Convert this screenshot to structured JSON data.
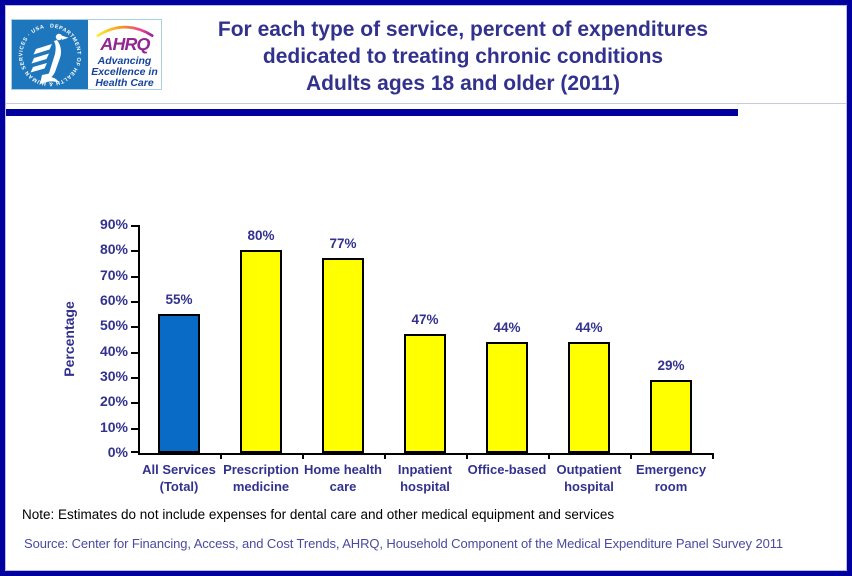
{
  "colors": {
    "frame_navy": "#0101A0",
    "title_navy": "#32328E",
    "bar_blue": "#0A6BC6",
    "bar_yellow": "#FFFF00",
    "bar_border": "#000000",
    "hhs_blue": "#1E76BC",
    "ahrq_purple": "#92278F",
    "tagline_blue": "#17449B",
    "source_blue": "#4A4AA0"
  },
  "header": {
    "logo": {
      "hhs_ring_text": "DEPARTMENT OF HEALTH & HUMAN SERVICES · USA",
      "ahrq_wordmark": "AHRQ",
      "tagline_lines": [
        "Advancing",
        "Excellence in",
        "Health Care"
      ]
    },
    "title_lines": [
      "For each type of service, percent of expenditures",
      "dedicated to treating chronic conditions",
      "Adults ages 18 and older (2011)"
    ]
  },
  "chart_data": {
    "type": "bar",
    "title": "For each type of service, percent of expenditures dedicated to treating chronic conditions, Adults ages 18 and older (2011)",
    "categories": [
      [
        "All Services",
        "(Total)"
      ],
      [
        "Prescription",
        "medicine"
      ],
      [
        "Home health",
        "care"
      ],
      [
        "Inpatient",
        "hospital"
      ],
      [
        "Office-based"
      ],
      [
        "Outpatient",
        "hospital"
      ],
      [
        "Emergency",
        "room"
      ]
    ],
    "values": [
      55,
      80,
      77,
      47,
      44,
      44,
      29
    ],
    "value_labels": [
      "55%",
      "80%",
      "77%",
      "47%",
      "44%",
      "44%",
      "29%"
    ],
    "bar_colors": [
      "#0A6BC6",
      "#FFFF00",
      "#FFFF00",
      "#FFFF00",
      "#FFFF00",
      "#FFFF00",
      "#FFFF00"
    ],
    "xlabel": "",
    "ylabel": "Percentage",
    "ylim": [
      0,
      90
    ],
    "ytick_step": 10,
    "ytick_labels": [
      "0%",
      "10%",
      "20%",
      "30%",
      "40%",
      "50%",
      "60%",
      "70%",
      "80%",
      "90%"
    ],
    "grid": false,
    "legend": false
  },
  "footer": {
    "note": "Note: Estimates do not include expenses for dental care and other medical equipment and services",
    "source": "Source: Center for Financing, Access, and Cost Trends, AHRQ, Household Component of the Medical Expenditure Panel Survey 2011"
  }
}
